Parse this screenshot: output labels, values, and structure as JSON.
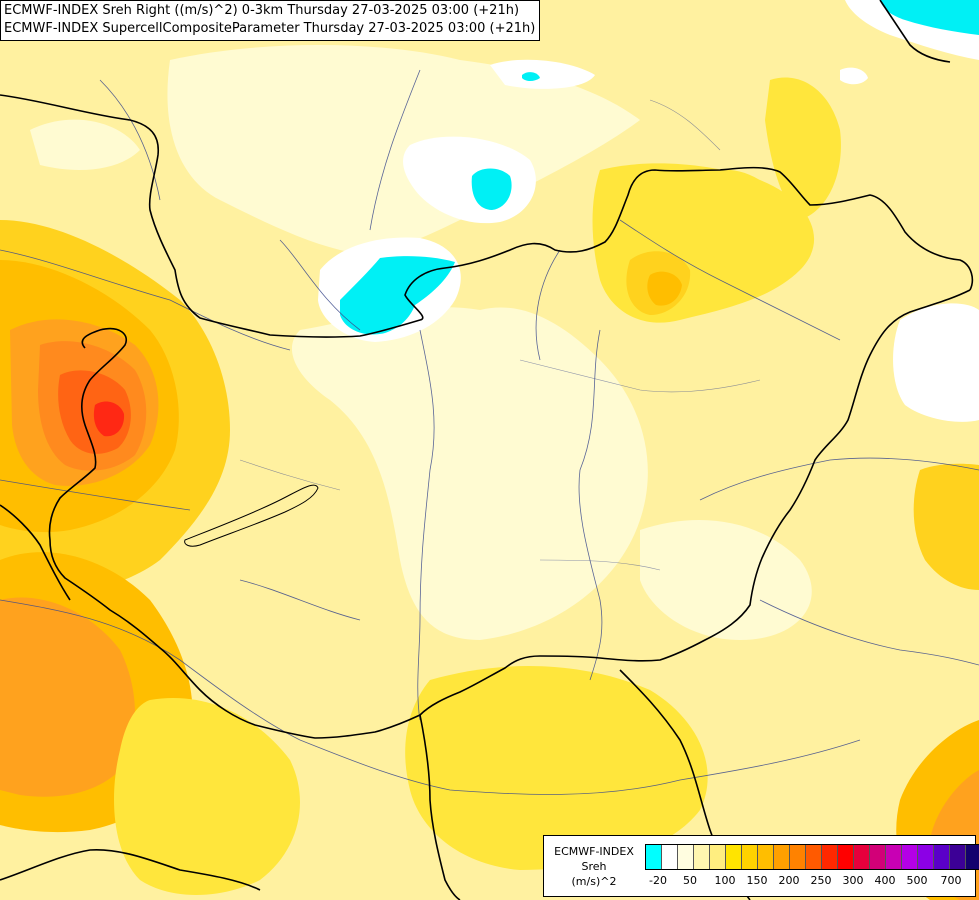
{
  "header": {
    "title_line1": "ECMWF-INDEX Sreh Right ((m/s)^2) 0-3km Thursday 27-03-2025 03:00 (+21h)",
    "title_line2": "ECMWF-INDEX SupercellCompositeParameter Thursday 27-03-2025 03:00 (+21h)"
  },
  "legend": {
    "label_line1": "ECMWF-INDEX",
    "label_line2": "Sreh",
    "label_line3": "(m/s)^2",
    "colors": [
      "#00ffff",
      "#ffffff",
      "#fffde0",
      "#fff6b0",
      "#ffee80",
      "#ffe400",
      "#ffd200",
      "#ffbe00",
      "#ffa000",
      "#ff8200",
      "#ff5a00",
      "#ff2800",
      "#ff0000",
      "#e6003c",
      "#d20078",
      "#c800b4",
      "#b400e6",
      "#8c00e6",
      "#5a00c8",
      "#3c0096",
      "#14006e"
    ],
    "ticks": [
      "-20",
      "50",
      "100",
      "150",
      "200",
      "250",
      "300",
      "400",
      "500",
      "700"
    ]
  },
  "map": {
    "colors": {
      "background": "#fff1a0",
      "pale": "#fffbd2",
      "white": "#ffffff",
      "cyan": "#00f0f5",
      "light_yellow": "#fff07a",
      "yellow": "#ffe63c",
      "gold": "#ffd21e",
      "amber": "#ffbe00",
      "orange": "#ffa21e",
      "dark_orange": "#ff8a1e",
      "red_orange": "#ff6414",
      "red": "#ff2814",
      "country_border": "#000000",
      "rivers": "#3c4a8c"
    }
  }
}
